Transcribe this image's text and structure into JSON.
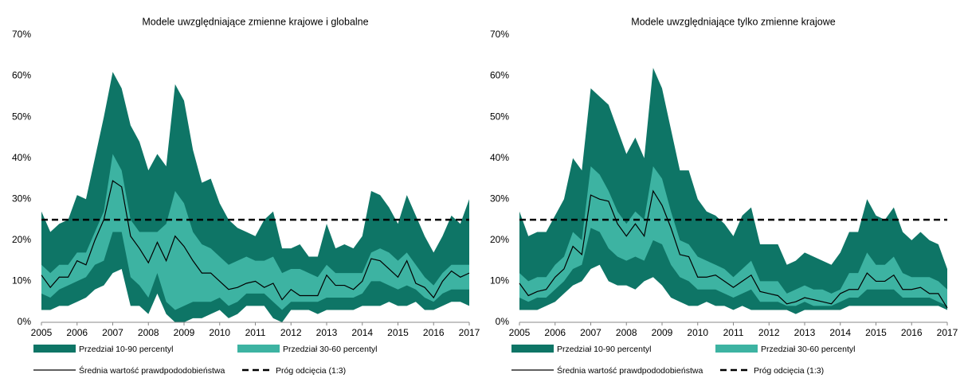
{
  "chart_data": [
    {
      "type": "area",
      "title": "Modele uwzględniające zmienne krajowe i globalne",
      "x": [
        2005,
        2005.25,
        2005.5,
        2005.75,
        2006,
        2006.25,
        2006.5,
        2006.75,
        2007,
        2007.25,
        2007.5,
        2007.75,
        2008,
        2008.25,
        2008.5,
        2008.75,
        2009,
        2009.25,
        2009.5,
        2009.75,
        2010,
        2010.25,
        2010.5,
        2010.75,
        2011,
        2011.25,
        2011.5,
        2011.75,
        2012,
        2012.25,
        2012.5,
        2012.75,
        2013,
        2013.25,
        2013.5,
        2013.75,
        2014,
        2014.25,
        2014.5,
        2014.75,
        2015,
        2015.25,
        2015.5,
        2015.75,
        2016,
        2016.25,
        2016.5,
        2016.75,
        2017
      ],
      "xlim": [
        2005,
        2017
      ],
      "xticks": [
        2005,
        2006,
        2007,
        2008,
        2009,
        2010,
        2011,
        2012,
        2013,
        2014,
        2015,
        2016,
        2017
      ],
      "ylim": [
        0,
        70
      ],
      "yticks": [
        {
          "value": 0,
          "label": "0%"
        },
        {
          "value": 10,
          "label": "10%"
        },
        {
          "value": 20,
          "label": "20%"
        },
        {
          "value": 30,
          "label": "30%"
        },
        {
          "value": 40,
          "label": "40%"
        },
        {
          "value": 50,
          "label": "50%"
        },
        {
          "value": 60,
          "label": "60%"
        },
        {
          "value": 70,
          "label": "70%"
        }
      ],
      "series": [
        {
          "name": "Przedział 10-90 percentyl",
          "color": "#0e7566",
          "high": [
            27,
            22,
            24,
            25,
            31,
            30,
            40,
            50,
            61,
            57,
            48,
            44,
            37,
            41,
            38,
            58,
            54,
            42,
            34,
            35,
            29,
            25,
            23,
            22,
            21,
            25,
            27,
            18,
            18,
            19,
            16,
            16,
            24,
            18,
            19,
            18,
            21,
            32,
            31,
            28,
            24,
            31,
            26,
            21,
            17,
            21,
            26,
            24,
            30
          ],
          "low": [
            3,
            3,
            4,
            4,
            5,
            6,
            8,
            9,
            12,
            13,
            4,
            4,
            2,
            7,
            2,
            0,
            0,
            1,
            1,
            2,
            3,
            1,
            2,
            4,
            4,
            4,
            1,
            0,
            3,
            3,
            3,
            2,
            3,
            3,
            3,
            3,
            4,
            4,
            4,
            5,
            4,
            4,
            5,
            3,
            3,
            4,
            5,
            5,
            4
          ]
        },
        {
          "name": "Przedział 30-60 percentyl",
          "color": "#3db3a2",
          "high": [
            14,
            12,
            14,
            14,
            17,
            17,
            22,
            27,
            41,
            37,
            25,
            22,
            22,
            22,
            24,
            32,
            29,
            22,
            19,
            18,
            16,
            14,
            15,
            16,
            15,
            15,
            16,
            12,
            13,
            13,
            12,
            11,
            14,
            12,
            12,
            12,
            12,
            17,
            18,
            17,
            15,
            17,
            14,
            11,
            9,
            12,
            14,
            14,
            14
          ],
          "low": [
            7,
            6,
            8,
            9,
            10,
            11,
            14,
            15,
            22,
            22,
            11,
            9,
            6,
            12,
            5,
            3,
            4,
            5,
            5,
            5,
            6,
            4,
            5,
            7,
            7,
            7,
            5,
            3,
            5,
            5,
            5,
            5,
            6,
            6,
            6,
            6,
            7,
            10,
            10,
            9,
            8,
            9,
            8,
            6,
            5,
            7,
            8,
            8,
            8
          ]
        },
        {
          "name": "Średnia wartość prawdpododobieństwa",
          "color": "#000000",
          "values": [
            11.5,
            8.5,
            11,
            11,
            15,
            14,
            20,
            25,
            34.5,
            33,
            21,
            18,
            14.5,
            19.5,
            15,
            21,
            18.5,
            15,
            12,
            12,
            10,
            8,
            8.5,
            9.5,
            10,
            8.5,
            9.5,
            5.5,
            8,
            6.5,
            6.5,
            6.5,
            11.5,
            9,
            9,
            8,
            10,
            15.5,
            15,
            13,
            11,
            15,
            9.5,
            8.5,
            6,
            10,
            12.5,
            11,
            12
          ]
        }
      ],
      "threshold": {
        "name": "Próg odcięcia (1:3)",
        "value": 25,
        "color": "#000000"
      }
    },
    {
      "type": "area",
      "title": "Modele uwzględniające tylko zmienne krajowe",
      "x": [
        2005,
        2005.25,
        2005.5,
        2005.75,
        2006,
        2006.25,
        2006.5,
        2006.75,
        2007,
        2007.25,
        2007.5,
        2007.75,
        2008,
        2008.25,
        2008.5,
        2008.75,
        2009,
        2009.25,
        2009.5,
        2009.75,
        2010,
        2010.25,
        2010.5,
        2010.75,
        2011,
        2011.25,
        2011.5,
        2011.75,
        2012,
        2012.25,
        2012.5,
        2012.75,
        2013,
        2013.25,
        2013.5,
        2013.75,
        2014,
        2014.25,
        2014.5,
        2014.75,
        2015,
        2015.25,
        2015.5,
        2015.75,
        2016,
        2016.25,
        2016.5,
        2016.75,
        2017
      ],
      "xlim": [
        2005,
        2017
      ],
      "xticks": [
        2005,
        2006,
        2007,
        2008,
        2009,
        2010,
        2011,
        2012,
        2013,
        2014,
        2015,
        2016,
        2017
      ],
      "ylim": [
        0,
        70
      ],
      "yticks": [
        {
          "value": 0,
          "label": "0%"
        },
        {
          "value": 10,
          "label": "10%"
        },
        {
          "value": 20,
          "label": "20%"
        },
        {
          "value": 30,
          "label": "30%"
        },
        {
          "value": 40,
          "label": "40%"
        },
        {
          "value": 50,
          "label": "50%"
        },
        {
          "value": 60,
          "label": "60%"
        },
        {
          "value": 70,
          "label": "70%"
        }
      ],
      "series": [
        {
          "name": "Przedział 10-90 percentyl",
          "color": "#0e7566",
          "high": [
            27,
            21,
            22,
            22,
            26,
            30,
            40,
            37,
            57,
            55,
            53,
            47,
            41,
            45,
            40,
            62,
            57,
            47,
            37,
            37,
            30,
            27,
            26,
            24,
            21,
            26,
            28,
            19,
            19,
            19,
            14,
            15,
            17,
            16,
            15,
            14,
            17,
            22,
            22,
            30,
            26,
            25,
            28,
            22,
            20,
            22,
            20,
            19,
            13
          ],
          "low": [
            3,
            3,
            3,
            4,
            5,
            7,
            9,
            10,
            13,
            14,
            10,
            9,
            9,
            8,
            10,
            11,
            9,
            6,
            5,
            4,
            4,
            5,
            4,
            4,
            3,
            4,
            3,
            3,
            3,
            3,
            3,
            2,
            3,
            3,
            3,
            3,
            3,
            4,
            4,
            4,
            4,
            4,
            4,
            4,
            4,
            4,
            4,
            4,
            3
          ]
        },
        {
          "name": "Przedział 30-60 percentyl",
          "color": "#3db3a2",
          "high": [
            12,
            10,
            11,
            11,
            14,
            16,
            22,
            20,
            38,
            36,
            32,
            27,
            24,
            27,
            25,
            38,
            35,
            27,
            20,
            19,
            16,
            15,
            14,
            13,
            11,
            13,
            15,
            10,
            10,
            10,
            7,
            8,
            9,
            8,
            8,
            7,
            8,
            12,
            12,
            17,
            14,
            14,
            16,
            12,
            11,
            11,
            11,
            10,
            8
          ],
          "low": [
            6,
            5,
            6,
            6,
            8,
            10,
            13,
            14,
            23,
            22,
            18,
            16,
            15,
            16,
            15,
            20,
            19,
            14,
            11,
            10,
            8,
            8,
            8,
            7,
            6,
            7,
            8,
            5,
            5,
            5,
            4,
            4,
            5,
            4,
            4,
            4,
            5,
            6,
            6,
            8,
            8,
            8,
            8,
            6,
            6,
            6,
            6,
            5,
            4
          ]
        },
        {
          "name": "Średnia wartość prawdpododobieństwa",
          "color": "#000000",
          "values": [
            9.5,
            6.5,
            7.5,
            8,
            11,
            13,
            18.5,
            16.5,
            31,
            30,
            29.5,
            24,
            21,
            24,
            21,
            32,
            28.5,
            23,
            16.5,
            16,
            11,
            11,
            11.5,
            10,
            8.5,
            10,
            11.5,
            7.5,
            7,
            6.5,
            4.5,
            5,
            6,
            5.5,
            5,
            4.5,
            7,
            8,
            8,
            12,
            10,
            10,
            11.5,
            8,
            8,
            8.5,
            7,
            7,
            3.5
          ]
        }
      ],
      "threshold": {
        "name": "Próg odcięcia (1:3)",
        "value": 25,
        "color": "#000000"
      }
    }
  ]
}
